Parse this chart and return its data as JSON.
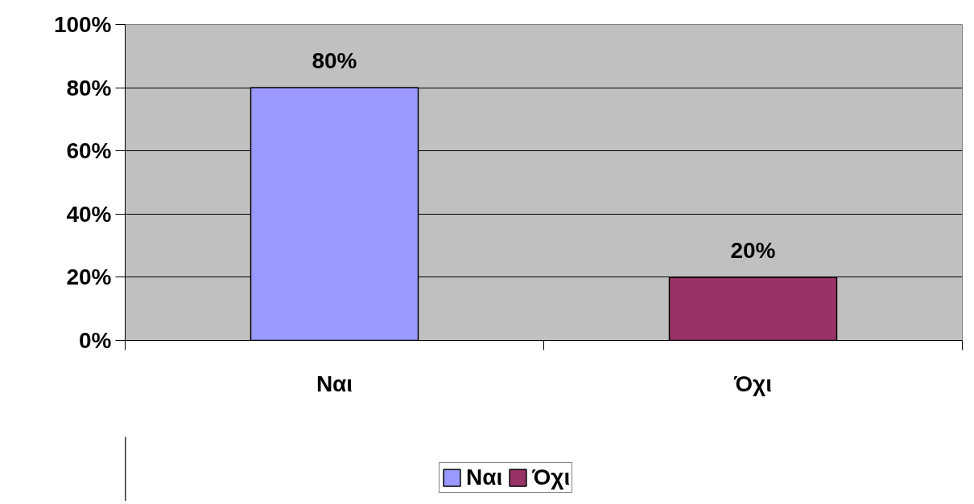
{
  "chart_data": {
    "type": "bar",
    "categories": [
      "Ναι",
      "Όχι"
    ],
    "series": [
      {
        "name": "Ναι",
        "color": "#9999ff",
        "values": [
          80,
          null
        ],
        "value_labels": [
          "80%",
          null
        ]
      },
      {
        "name": "Όχι",
        "color": "#993366",
        "values": [
          null,
          20
        ],
        "value_labels": [
          null,
          "20%"
        ]
      }
    ],
    "ylim": [
      0,
      100
    ],
    "yticks": [
      {
        "value": 0,
        "label": "0%"
      },
      {
        "value": 20,
        "label": "20%"
      },
      {
        "value": 40,
        "label": "40%"
      },
      {
        "value": 60,
        "label": "60%"
      },
      {
        "value": 80,
        "label": "80%"
      },
      {
        "value": 100,
        "label": "100%"
      }
    ],
    "grid": "y",
    "legend": "bottom"
  }
}
